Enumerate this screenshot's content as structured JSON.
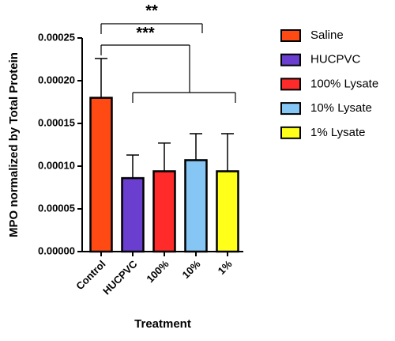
{
  "chart_data": {
    "type": "bar",
    "y_label": "MPO normalized by Total Protein",
    "x_label": "Treatment",
    "categories": [
      "Control",
      "HUCPVC",
      "100%",
      "10%",
      "1%"
    ],
    "values": [
      0.00018,
      8.6e-05,
      9.4e-05,
      0.000107,
      9.4e-05
    ],
    "errors": [
      4.6e-05,
      2.7e-05,
      3.3e-05,
      3.1e-05,
      4.4e-05
    ],
    "colors": [
      "#ff4a14",
      "#6a3fcf",
      "#ff2b2b",
      "#86c6f4",
      "#ffff1a"
    ],
    "legend": [
      "Saline",
      "HUCPVC",
      "100% Lysate",
      "10% Lysate",
      "1% Lysate"
    ],
    "ylim": [
      0,
      0.00025
    ],
    "yticks": [
      {
        "value": 0,
        "label": "0.00000"
      },
      {
        "value": 5e-05,
        "label": "0.00005"
      },
      {
        "value": 0.0001,
        "label": "0.00010"
      },
      {
        "value": 0.00015,
        "label": "0.00015"
      },
      {
        "value": 0.0002,
        "label": "0.00020"
      },
      {
        "value": 0.00025,
        "label": "0.00025"
      }
    ],
    "annotations": [
      "**",
      "***"
    ]
  }
}
